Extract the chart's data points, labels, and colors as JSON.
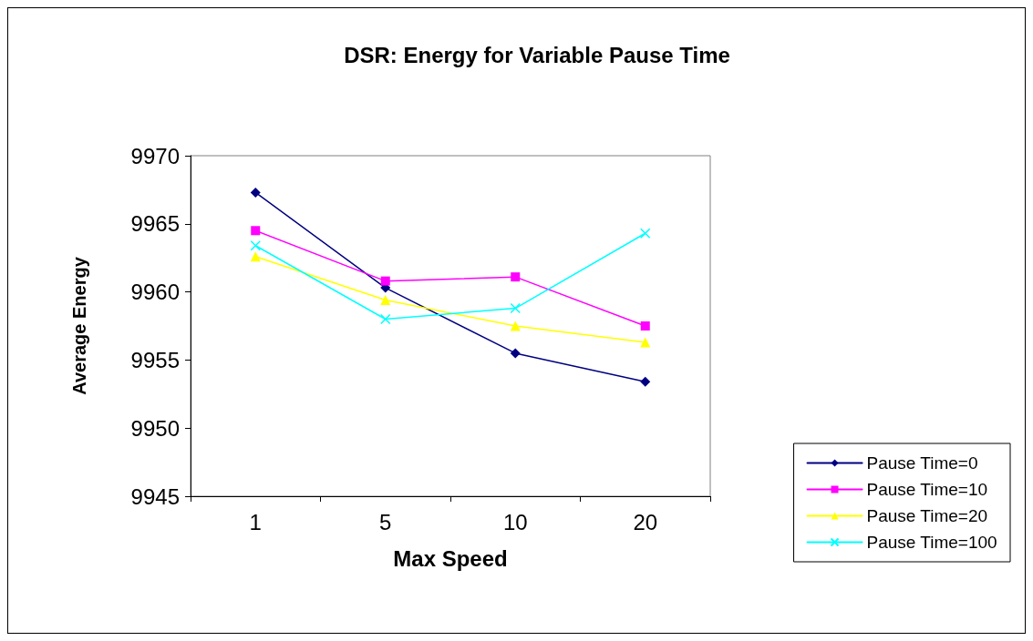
{
  "chart_data": {
    "type": "line",
    "title": "DSR: Energy for Variable Pause Time",
    "xlabel": "Max Speed",
    "ylabel": "Average Energy",
    "categories": [
      "1",
      "5",
      "10",
      "20"
    ],
    "series": [
      {
        "name": "Pause Time=0",
        "color": "#000080",
        "marker": "diamond",
        "values": [
          9967.3,
          9960.3,
          9955.5,
          9953.4
        ]
      },
      {
        "name": "Pause Time=10",
        "color": "#ff00ff",
        "marker": "square",
        "values": [
          9964.5,
          9960.8,
          9961.1,
          9957.5
        ]
      },
      {
        "name": "Pause Time=20",
        "color": "#ffff00",
        "marker": "triangle",
        "values": [
          9962.6,
          9959.4,
          9957.5,
          9956.3
        ]
      },
      {
        "name": "Pause Time=100",
        "color": "#00ffff",
        "marker": "cross",
        "values": [
          9963.4,
          9958.0,
          9958.8,
          9964.3
        ]
      }
    ],
    "ylim": [
      9945,
      9970
    ],
    "yticks": [
      9945,
      9950,
      9955,
      9960,
      9965,
      9970
    ],
    "grid": false,
    "legend": "right",
    "line_style": "solid"
  }
}
